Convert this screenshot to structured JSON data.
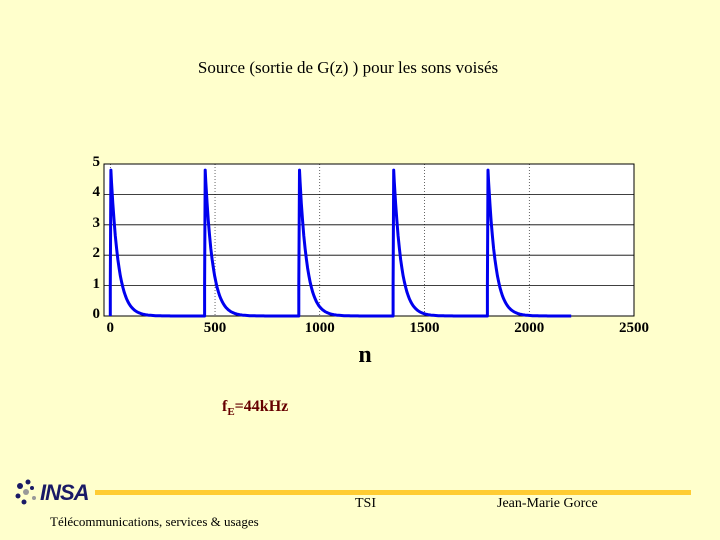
{
  "slide": {
    "fe_main": "f",
    "fe_sub": "E",
    "fe_rest": "=44kHz",
    "logo_text": "INSA",
    "footer_center": "TSI",
    "footer_right": "Jean-Marie Gorce",
    "footer_left": "Télécommunications, services & usages"
  },
  "chart_data": {
    "type": "line",
    "title": "Source (sortie de G(z) ) pour les sons voisés",
    "xlabel": "n",
    "ylabel": "",
    "xlim": [
      -30,
      2500
    ],
    "ylim": [
      0,
      5
    ],
    "xticks": [
      "0",
      "500",
      "1000",
      "1500",
      "2000",
      "2500"
    ],
    "yticks": [
      "0",
      "1",
      "2",
      "3",
      "4",
      "5"
    ],
    "grid": true,
    "line_color": "#0000ee",
    "series": [
      {
        "pulse_starts": [
          0,
          450,
          900,
          1350,
          1800
        ],
        "peak": 4.8,
        "decay": 35,
        "x_end": 2200
      }
    ]
  }
}
